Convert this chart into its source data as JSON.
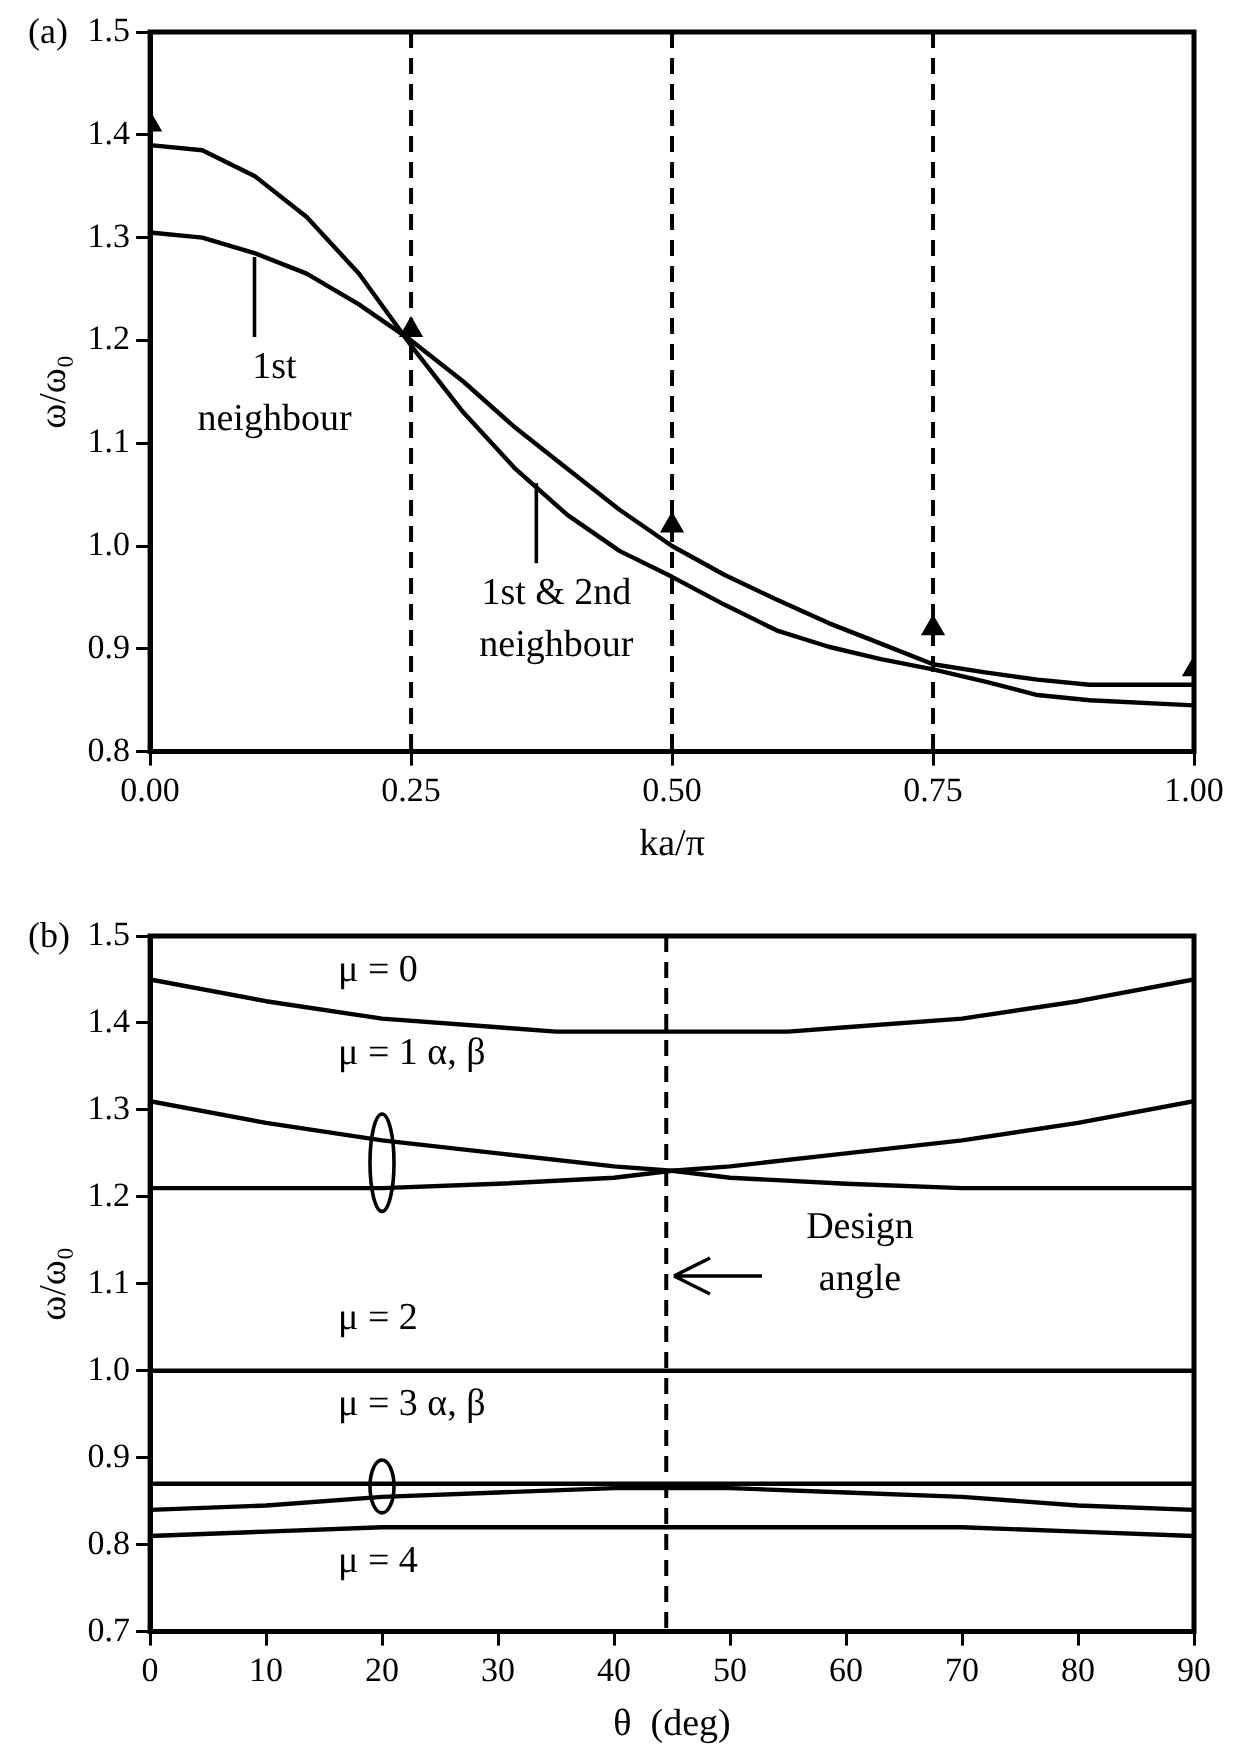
{
  "chart_data": [
    {
      "type": "line",
      "title": "(a)",
      "xlabel": "ka/π",
      "ylabel": "ω/ω₀",
      "xlim": [
        0,
        1
      ],
      "ylim": [
        0.8,
        1.5
      ],
      "xticks": [
        {
          "value": 0,
          "label": "0.00"
        },
        {
          "value": 0.25,
          "label": "0.25"
        },
        {
          "value": 0.5,
          "label": "0.50"
        },
        {
          "value": 0.75,
          "label": "0.75"
        },
        {
          "value": 1,
          "label": "1.00"
        }
      ],
      "yticks": [
        0.8,
        0.9,
        {
          "value": 1,
          "label": "1.0"
        },
        1.1,
        1.2,
        1.3,
        1.4,
        1.5
      ],
      "grid": false,
      "legend": false,
      "line_style": "solid",
      "series": [
        {
          "color": "#000000",
          "x": [
            0,
            0.05,
            0.1,
            0.15,
            0.2,
            0.25,
            0.3,
            0.35,
            0.4,
            0.45,
            0.5,
            0.55,
            0.6,
            0.65,
            0.7,
            0.75,
            0.8,
            0.85,
            0.9,
            1.0
          ],
          "values": [
            1.305,
            1.3,
            1.285,
            1.265,
            1.235,
            1.2,
            1.16,
            1.115,
            1.075,
            1.035,
            1.0,
            0.972,
            0.948,
            0.925,
            0.905,
            0.885,
            0.877,
            0.87,
            0.865,
            0.865
          ]
        },
        {
          "color": "#000000",
          "x": [
            0,
            0.05,
            0.1,
            0.15,
            0.2,
            0.25,
            0.3,
            0.35,
            0.4,
            0.45,
            0.5,
            0.55,
            0.6,
            0.65,
            0.7,
            0.75,
            0.8,
            0.85,
            0.9,
            1.0
          ],
          "values": [
            1.39,
            1.385,
            1.36,
            1.32,
            1.265,
            1.195,
            1.13,
            1.075,
            1.03,
            0.995,
            0.97,
            0.943,
            0.918,
            0.902,
            0.89,
            0.88,
            0.868,
            0.855,
            0.85,
            0.845
          ]
        },
        {
          "type": "scatter",
          "marker": "triangle",
          "color": "#000000",
          "x": [
            0,
            0.25,
            0.5,
            0.75,
            1.0
          ],
          "values": [
            1.41,
            1.21,
            1.02,
            0.92,
            0.88
          ]
        }
      ],
      "ref_lines": [
        {
          "axis": "x",
          "value": 0.25,
          "line_style": "dashed"
        },
        {
          "axis": "x",
          "value": 0.5,
          "line_style": "dashed"
        },
        {
          "axis": "x",
          "value": 0.75,
          "line_style": "dashed"
        }
      ],
      "annotations": [
        {
          "text": "1st neighbour",
          "x": 0.1,
          "y": 1.285
        },
        {
          "text": "1st & 2nd neighbour",
          "x": 0.37,
          "y": 1.065
        }
      ]
    },
    {
      "type": "line",
      "title": "(b)",
      "xlabel": "θ  (deg)",
      "ylabel": "ω/ω₀",
      "xlim": [
        0,
        90
      ],
      "ylim": [
        0.7,
        1.5
      ],
      "xticks": [
        0,
        10,
        20,
        30,
        40,
        50,
        60,
        70,
        80,
        90
      ],
      "yticks": [
        0.7,
        0.8,
        0.9,
        {
          "value": 1,
          "label": "1.0"
        },
        1.1,
        1.2,
        1.3,
        1.4,
        1.5
      ],
      "grid": false,
      "legend": false,
      "line_style": "solid",
      "series": [
        {
          "color": "#000000",
          "x": [
            0,
            10,
            20,
            30,
            35,
            45,
            55,
            60,
            70,
            80,
            90
          ],
          "values": [
            1.45,
            1.425,
            1.405,
            1.395,
            1.39,
            1.39,
            1.39,
            1.395,
            1.405,
            1.425,
            1.45
          ]
        },
        {
          "color": "#000000",
          "x": [
            0,
            10,
            20,
            30,
            40,
            45,
            50,
            60,
            70,
            80,
            90
          ],
          "values": [
            1.31,
            1.285,
            1.265,
            1.25,
            1.235,
            1.23,
            1.222,
            1.215,
            1.21,
            1.21,
            1.21
          ]
        },
        {
          "color": "#000000",
          "x": [
            0,
            10,
            20,
            30,
            40,
            45,
            50,
            60,
            70,
            80,
            90
          ],
          "values": [
            1.21,
            1.21,
            1.21,
            1.215,
            1.222,
            1.23,
            1.235,
            1.25,
            1.265,
            1.285,
            1.31
          ]
        },
        {
          "color": "#000000",
          "x": [
            0,
            90
          ],
          "values": [
            1.0,
            1.0
          ]
        },
        {
          "color": "#000000",
          "x": [
            0,
            90
          ],
          "values": [
            0.87,
            0.87
          ]
        },
        {
          "color": "#000000",
          "x": [
            0,
            10,
            20,
            30,
            40,
            45,
            50,
            60,
            70,
            80,
            90
          ],
          "values": [
            0.84,
            0.845,
            0.855,
            0.86,
            0.865,
            0.865,
            0.865,
            0.86,
            0.855,
            0.845,
            0.84
          ]
        },
        {
          "color": "#000000",
          "x": [
            0,
            10,
            20,
            45,
            70,
            80,
            90
          ],
          "values": [
            0.81,
            0.815,
            0.82,
            0.82,
            0.82,
            0.815,
            0.81
          ]
        }
      ],
      "ref_lines": [
        {
          "axis": "x",
          "value": 44.5,
          "line_style": "dashed"
        }
      ],
      "annotations": [
        "μ = 0",
        "μ = 1 α, β",
        "μ = 2",
        "μ = 3 α, β",
        "μ = 4",
        "Design angle"
      ]
    }
  ]
}
